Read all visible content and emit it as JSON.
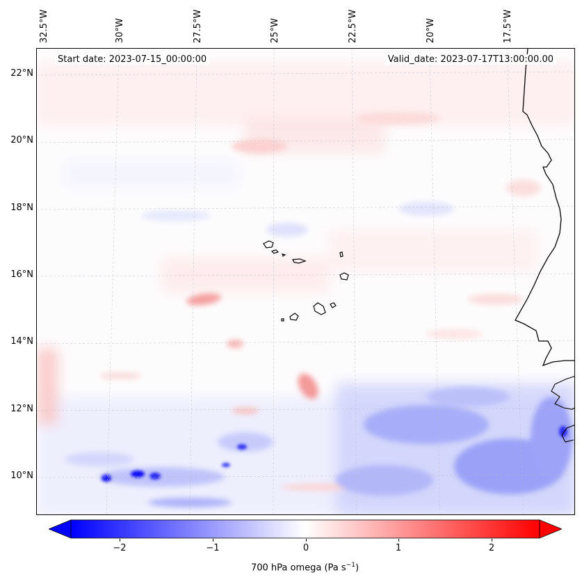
{
  "map": {
    "lon_labels": [
      "32.5°W",
      "30°W",
      "27.5°W",
      "25°W",
      "22.5°W",
      "20°W",
      "17.5°W"
    ],
    "lat_labels": [
      "22°N",
      "20°N",
      "18°N",
      "16°N",
      "14°N",
      "12°N",
      "10°N"
    ],
    "start_date": "Start date: 2023-07-15_00:00:00",
    "valid_date": "Valid_date: 2023-07-17T13:00:00.00",
    "field": "700 hPa omega",
    "colormap": "bwr",
    "extent": {
      "lon_min": -32.6,
      "lon_max": -15.0,
      "lat_min": 8.9,
      "lat_max": 22.7
    }
  },
  "colorbar": {
    "ticks": [
      "−2",
      "−1",
      "0",
      "1",
      "2"
    ],
    "tick_values": [
      -2,
      -1,
      0,
      1,
      2
    ],
    "range": [
      -2.6,
      2.6
    ],
    "extend": "both",
    "label_main": "700 hPa omega (Pa s",
    "label_sup": "−1",
    "label_end": ")",
    "colors": {
      "low": "#0000ff",
      "mid": "#ffffff",
      "high": "#ff0000"
    }
  }
}
